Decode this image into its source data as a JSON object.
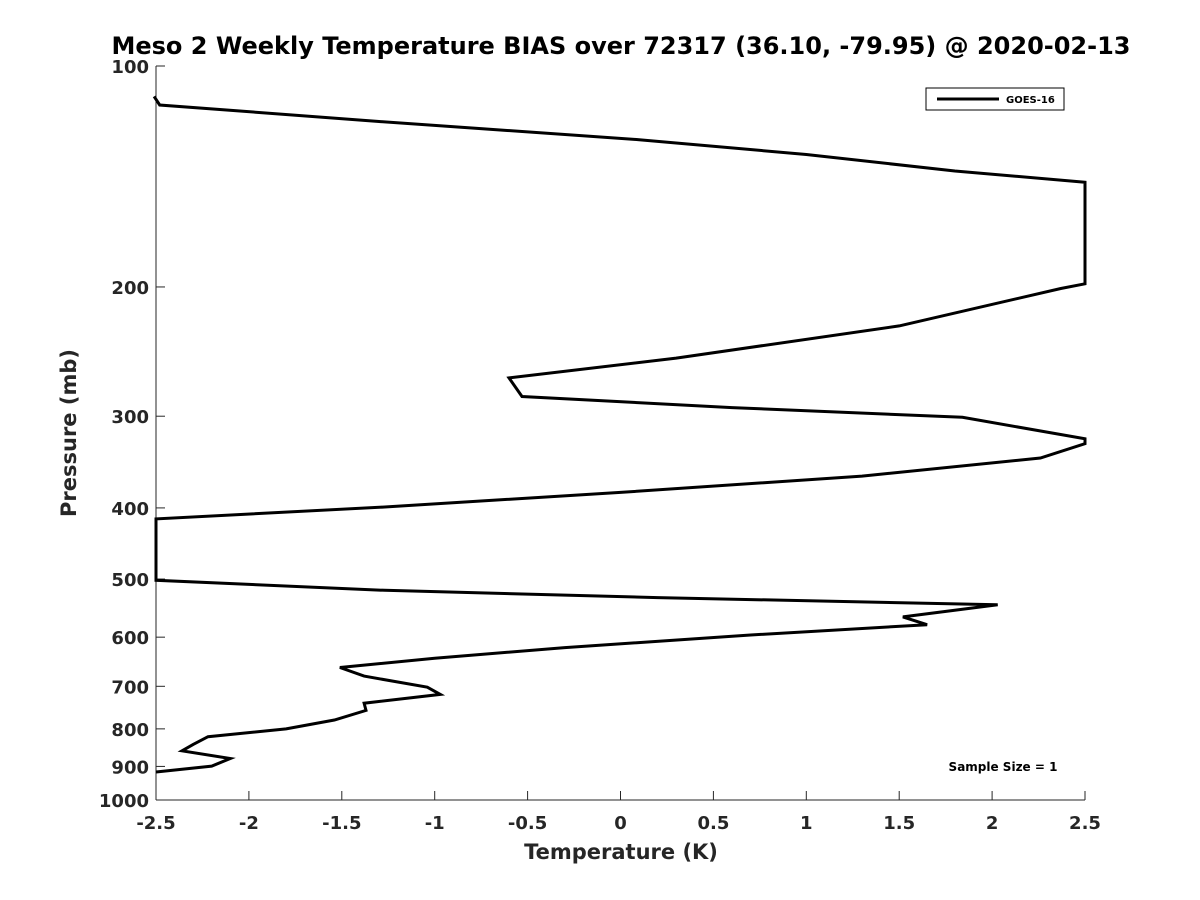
{
  "chart_data": {
    "type": "line",
    "title": "Meso 2 Weekly Temperature BIAS over 72317 (36.10, -79.95) @ 2020-02-13",
    "xlabel": "Temperature (K)",
    "ylabel": "Pressure (mb)",
    "xlim": [
      -2.5,
      2.5
    ],
    "ylim": [
      100,
      1000
    ],
    "y_scale": "log",
    "y_reversed": true,
    "grid": false,
    "legend_position": "top-right",
    "x_ticks": [
      "-2.5",
      "-2",
      "-1.5",
      "-1",
      "-0.5",
      "0",
      "0.5",
      "1",
      "1.5",
      "2",
      "2.5"
    ],
    "x_tick_values": [
      -2.5,
      -2,
      -1.5,
      -1,
      -0.5,
      0,
      0.5,
      1,
      1.5,
      2,
      2.5
    ],
    "y_ticks": [
      "100",
      "200",
      "300",
      "400",
      "500",
      "600",
      "700",
      "800",
      "900",
      "1000"
    ],
    "y_tick_values": [
      100,
      200,
      300,
      400,
      500,
      600,
      700,
      800,
      900,
      1000
    ],
    "series": [
      {
        "name": "GOES-16",
        "color": "#000000",
        "points": [
          [
            -2.51,
            110
          ],
          [
            -2.48,
            113
          ],
          [
            -1.3,
            119
          ],
          [
            0.1,
            126
          ],
          [
            1.0,
            132
          ],
          [
            1.8,
            139
          ],
          [
            2.5,
            144
          ],
          [
            2.5,
            198
          ],
          [
            2.37,
            201
          ],
          [
            1.5,
            226
          ],
          [
            0.3,
            250
          ],
          [
            -0.6,
            266
          ],
          [
            -0.53,
            282
          ],
          [
            0.6,
            292
          ],
          [
            1.84,
            301
          ],
          [
            2.5,
            322
          ],
          [
            2.5,
            327
          ],
          [
            2.26,
            342
          ],
          [
            1.3,
            362
          ],
          [
            0.0,
            381
          ],
          [
            -1.28,
            399
          ],
          [
            -2.5,
            414
          ],
          [
            -2.5,
            502
          ],
          [
            -1.27,
            518
          ],
          [
            0.2,
            530
          ],
          [
            2.03,
            542
          ],
          [
            1.52,
            563
          ],
          [
            1.65,
            577
          ],
          [
            0.7,
            596
          ],
          [
            -0.3,
            620
          ],
          [
            -1.0,
            641
          ],
          [
            -1.51,
            660
          ],
          [
            -1.38,
            678
          ],
          [
            -1.04,
            702
          ],
          [
            -0.97,
            718
          ],
          [
            -1.38,
            738
          ],
          [
            -1.37,
            755
          ],
          [
            -1.54,
            778
          ],
          [
            -1.8,
            800
          ],
          [
            -2.22,
            820
          ],
          [
            -2.3,
            840
          ],
          [
            -2.36,
            857
          ],
          [
            -2.1,
            878
          ],
          [
            -2.2,
            899
          ],
          [
            -2.5,
            916
          ]
        ]
      }
    ],
    "annotation": "Sample Size = 1"
  }
}
